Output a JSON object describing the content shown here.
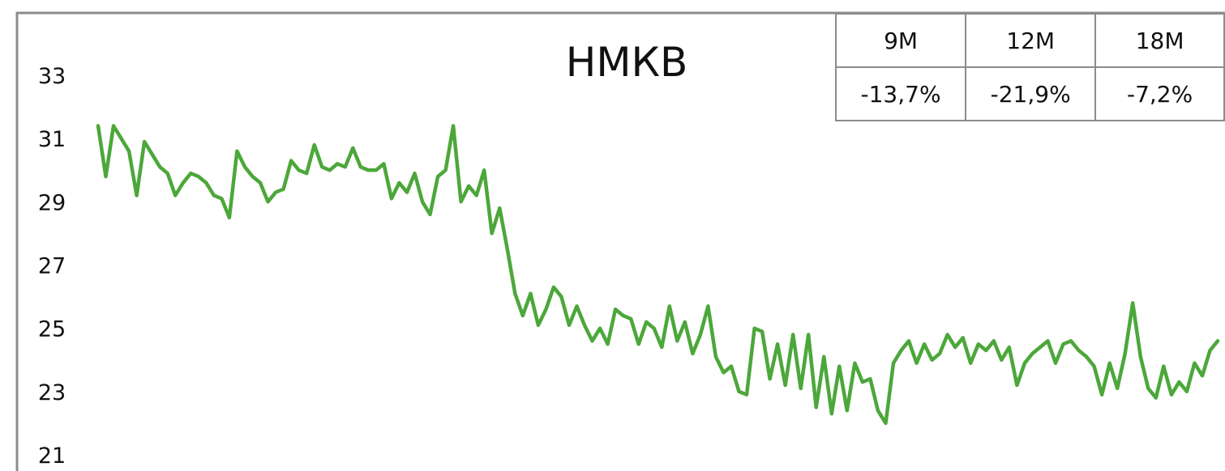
{
  "chart_data": {
    "type": "line",
    "title": "НМКВ",
    "xlabel": "",
    "ylabel": "",
    "ylim": [
      21,
      33
    ],
    "yticks": [
      "21",
      "23",
      "25",
      "27",
      "29",
      "31",
      "33"
    ],
    "grid": false,
    "legend": "none",
    "line_color": "#4ca73a",
    "series": [
      {
        "values": [
          31.4,
          29.8,
          31.4,
          31.0,
          30.6,
          29.2,
          30.9,
          30.5,
          30.1,
          29.9,
          29.2,
          29.6,
          29.9,
          29.8,
          29.6,
          29.2,
          29.1,
          28.5,
          30.6,
          30.1,
          29.8,
          29.6,
          29.0,
          29.3,
          29.4,
          30.3,
          30.0,
          29.9,
          30.8,
          30.1,
          30.0,
          30.2,
          30.1,
          30.7,
          30.1,
          30.0,
          30.0,
          30.2,
          29.1,
          29.6,
          29.3,
          29.9,
          29.0,
          28.6,
          29.8,
          30.0,
          31.4,
          29.0,
          29.5,
          29.2,
          30.0,
          28.0,
          28.8,
          27.5,
          26.1,
          25.4,
          26.1,
          25.1,
          25.6,
          26.3,
          26.0,
          25.1,
          25.7,
          25.1,
          24.6,
          25.0,
          24.5,
          25.6,
          25.4,
          25.3,
          24.5,
          25.2,
          25.0,
          24.4,
          25.7,
          24.6,
          25.2,
          24.2,
          24.8,
          25.7,
          24.1,
          23.6,
          23.8,
          23.0,
          22.9,
          25.0,
          24.9,
          23.4,
          24.5,
          23.2,
          24.8,
          23.1,
          24.8,
          22.5,
          24.1,
          22.3,
          23.8,
          22.4,
          23.9,
          23.3,
          23.4,
          22.4,
          22.0,
          23.9,
          24.3,
          24.6,
          23.9,
          24.5,
          24.0,
          24.2,
          24.8,
          24.4,
          24.7,
          23.9,
          24.5,
          24.3,
          24.6,
          24.0,
          24.4,
          23.2,
          23.9,
          24.2,
          24.4,
          24.6,
          23.9,
          24.5,
          24.6,
          24.3,
          24.1,
          23.8,
          22.9,
          23.9,
          23.1,
          24.2,
          25.8,
          24.1,
          23.1,
          22.8,
          23.8,
          22.9,
          23.3,
          23.0,
          23.9,
          23.5,
          24.3,
          24.6
        ]
      }
    ]
  },
  "table": {
    "headers": [
      "9M",
      "12M",
      "18M"
    ],
    "values": [
      "-13,7%",
      "-21,9%",
      "-7,2%"
    ]
  }
}
